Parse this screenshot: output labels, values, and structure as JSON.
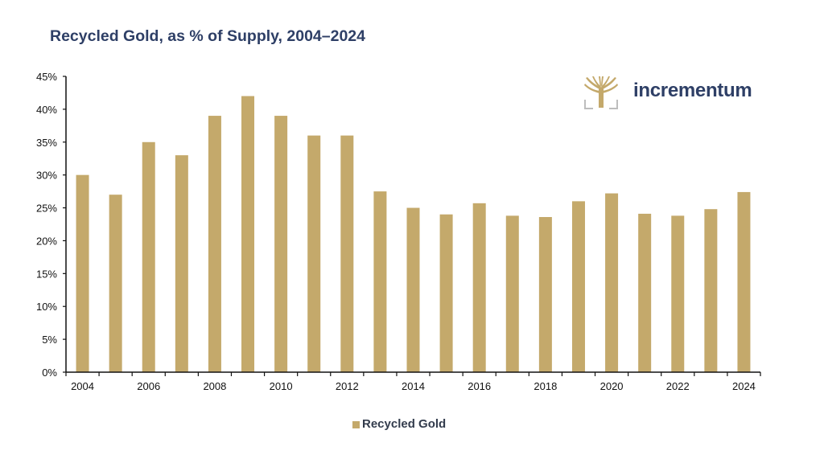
{
  "colors": {
    "bar": "#c4a96b",
    "title": "#2e3f66",
    "axis": "#111111"
  },
  "logo": {
    "text": "incrementum",
    "icon": "tree-icon"
  },
  "chart_data": {
    "type": "bar",
    "title": "Recycled Gold, as % of Supply, 2004–2024",
    "xlabel": "",
    "ylabel": "",
    "categories": [
      "2004",
      "2005",
      "2006",
      "2007",
      "2008",
      "2009",
      "2010",
      "2011",
      "2012",
      "2013",
      "2014",
      "2015",
      "2016",
      "2017",
      "2018",
      "2019",
      "2020",
      "2021",
      "2022",
      "2023",
      "2024"
    ],
    "x_tick_labels": [
      "2004",
      "2006",
      "2008",
      "2010",
      "2012",
      "2014",
      "2016",
      "2018",
      "2020",
      "2022",
      "2024"
    ],
    "series": [
      {
        "name": "Recycled Gold",
        "values": [
          30,
          27,
          35,
          33,
          39,
          42,
          39,
          36,
          36,
          27.5,
          25,
          24,
          25.7,
          23.8,
          23.6,
          26,
          27.2,
          24.1,
          23.8,
          24.8,
          27.4
        ]
      }
    ],
    "ylim": [
      0,
      45
    ],
    "y_ticks": [
      0,
      5,
      10,
      15,
      20,
      25,
      30,
      35,
      40,
      45
    ],
    "y_tick_labels": [
      "0%",
      "5%",
      "10%",
      "15%",
      "20%",
      "25%",
      "30%",
      "35%",
      "40%",
      "45%"
    ],
    "grid": false,
    "legend": {
      "position": "bottom-center",
      "entries": [
        "Recycled Gold"
      ]
    }
  }
}
